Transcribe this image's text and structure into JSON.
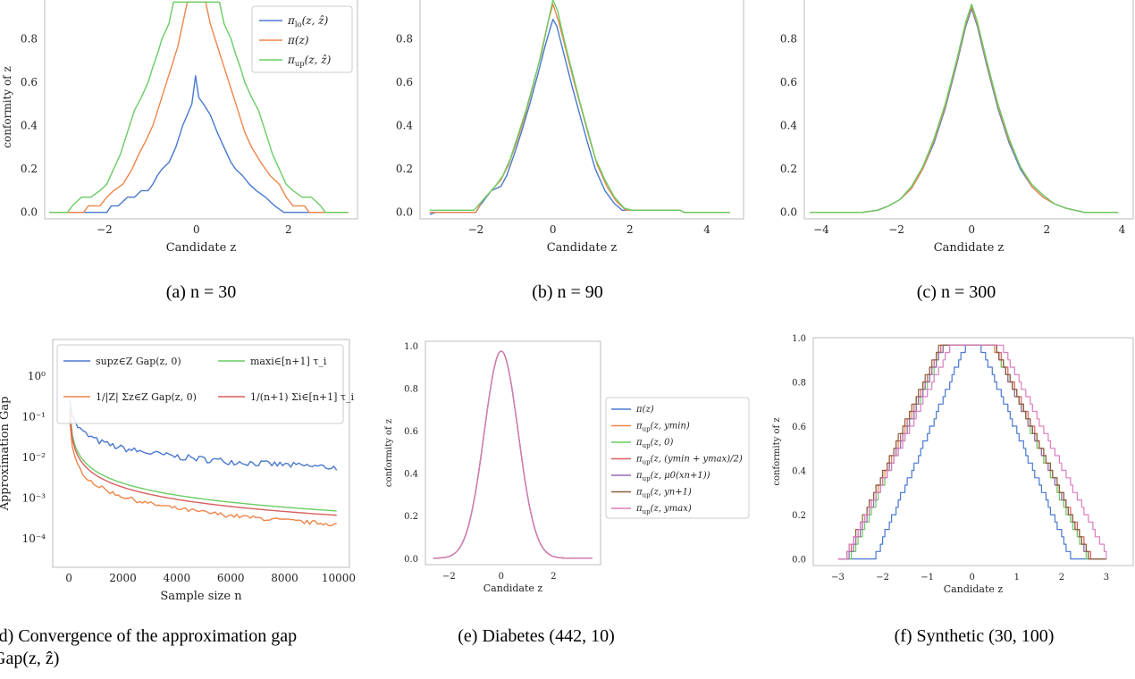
{
  "colors": {
    "blue": "#4878cf",
    "orange": "#ee854a",
    "green": "#6acc65",
    "red": "#d65f5f",
    "purple": "#956cb4",
    "brown": "#8c613c",
    "pink": "#dc7ec0"
  },
  "captions": {
    "a": "(a) n = 30",
    "b": "(b) n = 90",
    "c": "(c) n = 300",
    "d_line1": "(d) Convergence of the approximation gap",
    "d_line2": "Gap(z, ẑ)",
    "e": "(e) Diabetes (442, 10)",
    "f": "(f) Synthetic (30, 100)"
  },
  "chart_data": [
    {
      "id": "a",
      "type": "line",
      "xlabel": "Candidate z",
      "ylabel": "conformity of z",
      "xlim": [
        -3.3,
        3.5
      ],
      "ylim": [
        -0.03,
        1.0
      ],
      "xticks": [
        -2,
        0,
        2
      ],
      "yticks": [
        0.0,
        0.2,
        0.4,
        0.6,
        0.8,
        1.0
      ],
      "legend": "top-right",
      "series": [
        {
          "name": "π_lo(z, ẑ)",
          "color": "blue",
          "x": [
            -3.2,
            -1.95,
            -1.85,
            -1.7,
            -1.5,
            -1.35,
            -1.2,
            -1.05,
            -0.95,
            -0.85,
            -0.75,
            -0.6,
            -0.45,
            -0.3,
            -0.2,
            -0.1,
            -0.02,
            0.05,
            0.15,
            0.3,
            0.45,
            0.6,
            0.75,
            0.85,
            1.0,
            1.15,
            1.3,
            1.5,
            1.7,
            1.9,
            3.3
          ],
          "y": [
            0.0,
            0.0,
            0.03,
            0.03,
            0.07,
            0.07,
            0.1,
            0.1,
            0.13,
            0.17,
            0.2,
            0.23,
            0.3,
            0.4,
            0.45,
            0.5,
            0.63,
            0.53,
            0.5,
            0.45,
            0.37,
            0.3,
            0.23,
            0.2,
            0.17,
            0.13,
            0.1,
            0.07,
            0.03,
            0.0,
            0.0
          ]
        },
        {
          "name": "π(z)",
          "color": "orange",
          "x": [
            -3.2,
            -2.45,
            -2.35,
            -2.1,
            -1.95,
            -1.8,
            -1.6,
            -1.4,
            -1.25,
            -1.1,
            -0.95,
            -0.8,
            -0.65,
            -0.5,
            -0.4,
            -0.3,
            -0.2,
            -0.1,
            0.1,
            0.2,
            0.3,
            0.45,
            0.6,
            0.75,
            0.9,
            1.05,
            1.2,
            1.4,
            1.6,
            1.8,
            1.95,
            2.1,
            2.35,
            2.45,
            3.3
          ],
          "y": [
            0.0,
            0.0,
            0.03,
            0.03,
            0.07,
            0.1,
            0.13,
            0.2,
            0.27,
            0.33,
            0.4,
            0.5,
            0.6,
            0.7,
            0.77,
            0.87,
            0.97,
            0.97,
            0.97,
            0.97,
            0.87,
            0.77,
            0.67,
            0.57,
            0.47,
            0.37,
            0.3,
            0.23,
            0.17,
            0.13,
            0.07,
            0.03,
            0.03,
            0.0,
            0.0
          ]
        },
        {
          "name": "π_up(z, ẑ)",
          "color": "green",
          "x": [
            -3.2,
            -2.8,
            -2.7,
            -2.5,
            -2.3,
            -2.1,
            -1.95,
            -1.8,
            -1.65,
            -1.5,
            -1.35,
            -1.2,
            -1.05,
            -0.95,
            -0.85,
            -0.75,
            -0.6,
            -0.5,
            0.5,
            0.6,
            0.75,
            0.85,
            0.95,
            1.05,
            1.2,
            1.35,
            1.5,
            1.65,
            1.8,
            1.95,
            2.1,
            2.3,
            2.5,
            2.7,
            2.8,
            3.3
          ],
          "y": [
            0.0,
            0.0,
            0.03,
            0.07,
            0.07,
            0.1,
            0.13,
            0.2,
            0.27,
            0.37,
            0.47,
            0.53,
            0.6,
            0.67,
            0.73,
            0.8,
            0.87,
            0.97,
            0.97,
            0.87,
            0.8,
            0.73,
            0.67,
            0.6,
            0.53,
            0.47,
            0.37,
            0.27,
            0.2,
            0.13,
            0.1,
            0.07,
            0.07,
            0.03,
            0.0,
            0.0
          ]
        }
      ]
    },
    {
      "id": "b",
      "type": "line",
      "xlabel": "Candidate z",
      "ylabel": "",
      "xlim": [
        -3.45,
        4.95
      ],
      "ylim": [
        -0.03,
        1.0
      ],
      "xticks": [
        -2,
        0,
        2,
        4
      ],
      "yticks": [
        0.0,
        0.2,
        0.4,
        0.6,
        0.8,
        1.0
      ],
      "series": [
        {
          "name": "",
          "color": "blue",
          "x": [
            -3.2,
            -3.05,
            -2.0,
            -1.9,
            -1.6,
            -1.35,
            -1.2,
            -1.0,
            -0.8,
            -0.6,
            -0.4,
            -0.2,
            -0.05,
            0.0,
            0.1,
            0.3,
            0.5,
            0.7,
            0.9,
            1.1,
            1.35,
            1.6,
            1.8,
            3.3,
            3.4,
            4.6
          ],
          "y": [
            -0.01,
            0.0,
            0.0,
            0.03,
            0.1,
            0.12,
            0.17,
            0.27,
            0.38,
            0.5,
            0.63,
            0.77,
            0.86,
            0.89,
            0.86,
            0.72,
            0.58,
            0.45,
            0.32,
            0.2,
            0.1,
            0.04,
            0.01,
            0.01,
            0.0,
            0.0
          ]
        },
        {
          "name": "",
          "color": "orange",
          "x": [
            -3.2,
            -2.0,
            -1.85,
            -1.6,
            -1.35,
            -1.15,
            -0.95,
            -0.75,
            -0.55,
            -0.35,
            -0.15,
            0.0,
            0.15,
            0.35,
            0.55,
            0.75,
            0.95,
            1.15,
            1.4,
            1.65,
            1.9,
            3.3,
            3.4,
            4.6
          ],
          "y": [
            0.0,
            0.0,
            0.05,
            0.1,
            0.15,
            0.22,
            0.32,
            0.43,
            0.56,
            0.7,
            0.86,
            0.96,
            0.88,
            0.74,
            0.6,
            0.47,
            0.34,
            0.22,
            0.12,
            0.05,
            0.01,
            0.01,
            0.0,
            0.0
          ]
        },
        {
          "name": "",
          "color": "green",
          "x": [
            -3.2,
            -2.05,
            -1.8,
            -1.5,
            -1.3,
            -1.1,
            -0.9,
            -0.7,
            -0.5,
            -0.3,
            -0.1,
            0.0,
            0.12,
            0.3,
            0.5,
            0.7,
            0.9,
            1.1,
            1.35,
            1.6,
            1.85,
            2.05,
            3.3,
            3.4,
            4.6
          ],
          "y": [
            0.01,
            0.01,
            0.06,
            0.12,
            0.17,
            0.25,
            0.36,
            0.47,
            0.6,
            0.73,
            0.9,
            0.98,
            0.93,
            0.79,
            0.65,
            0.51,
            0.38,
            0.25,
            0.15,
            0.07,
            0.02,
            0.01,
            0.01,
            0.0,
            0.0
          ]
        }
      ]
    },
    {
      "id": "c",
      "type": "line",
      "xlabel": "Candidate z",
      "ylabel": "",
      "xlim": [
        -4.45,
        4.3
      ],
      "ylim": [
        -0.03,
        1.0
      ],
      "xticks": [
        -4,
        -2,
        0,
        2,
        4
      ],
      "yticks": [
        0.0,
        0.2,
        0.4,
        0.6,
        0.8,
        1.0
      ],
      "series": [
        {
          "name": "",
          "color": "blue",
          "x": [
            -4.3,
            -2.9,
            -2.5,
            -2.2,
            -1.9,
            -1.6,
            -1.3,
            -1.0,
            -0.7,
            -0.4,
            -0.15,
            0.0,
            0.15,
            0.4,
            0.7,
            1.0,
            1.3,
            1.6,
            1.9,
            2.2,
            2.5,
            3.0,
            3.9
          ],
          "y": [
            0.0,
            0.0,
            0.01,
            0.03,
            0.06,
            0.11,
            0.2,
            0.32,
            0.48,
            0.68,
            0.86,
            0.94,
            0.86,
            0.68,
            0.48,
            0.32,
            0.2,
            0.12,
            0.07,
            0.04,
            0.02,
            0.0,
            0.0
          ]
        },
        {
          "name": "",
          "color": "orange",
          "x": [
            -4.3,
            -2.9,
            -2.5,
            -2.2,
            -1.9,
            -1.6,
            -1.3,
            -1.0,
            -0.7,
            -0.4,
            -0.15,
            0.0,
            0.15,
            0.4,
            0.7,
            1.0,
            1.3,
            1.6,
            1.9,
            2.2,
            2.5,
            3.0,
            3.9
          ],
          "y": [
            0.0,
            0.0,
            0.01,
            0.03,
            0.06,
            0.11,
            0.2,
            0.33,
            0.49,
            0.69,
            0.87,
            0.95,
            0.87,
            0.69,
            0.49,
            0.33,
            0.21,
            0.12,
            0.07,
            0.04,
            0.02,
            0.0,
            0.0
          ]
        },
        {
          "name": "",
          "color": "green",
          "x": [
            -4.3,
            -2.9,
            -2.5,
            -2.2,
            -1.9,
            -1.6,
            -1.3,
            -1.0,
            -0.7,
            -0.4,
            -0.15,
            0.0,
            0.15,
            0.4,
            0.7,
            1.0,
            1.3,
            1.6,
            1.9,
            2.2,
            2.5,
            3.0,
            3.9
          ],
          "y": [
            0.0,
            0.0,
            0.01,
            0.03,
            0.06,
            0.12,
            0.21,
            0.34,
            0.5,
            0.7,
            0.88,
            0.96,
            0.88,
            0.7,
            0.5,
            0.34,
            0.21,
            0.13,
            0.08,
            0.04,
            0.02,
            0.0,
            0.0
          ]
        }
      ]
    },
    {
      "id": "d",
      "type": "line",
      "yscale": "log",
      "xlabel": "Sample size n",
      "ylabel": "Approximation Gap",
      "xlim": [
        -600,
        10400
      ],
      "ylim": [
        2e-05,
        8
      ],
      "xticks": [
        0,
        2000,
        4000,
        6000,
        8000,
        10000
      ],
      "yticks": [
        0.0001,
        0.001,
        0.01,
        0.1,
        1
      ],
      "ytick_labels": [
        "10⁻⁴",
        "10⁻³",
        "10⁻²",
        "10⁻¹",
        "10⁰"
      ],
      "legend": "top",
      "legend_entries": [
        {
          "label": "sup_{z∈Z} Gap(z, 0)",
          "color": "blue"
        },
        {
          "label": "1/|Z| Σ_{z∈Z} Gap(z, 0)",
          "color": "orange"
        },
        {
          "label": "max_{i∈[n+1]} τ_i",
          "color": "green"
        },
        {
          "label": "1/(n+1) Σ_{i∈[n+1]} τ_i",
          "color": "red"
        }
      ],
      "series": [
        {
          "name": "sup_{z∈Z} Gap(z, 0)",
          "color": "blue",
          "kind": "noisy",
          "amp": 3.0,
          "exp": 0.68,
          "noise": 0.18,
          "floor": 0.0003
        },
        {
          "name": "1/|Z| Σ_{z∈Z} Gap(z, 0)",
          "color": "orange",
          "kind": "noisy",
          "amp": 1.9,
          "exp": 0.98,
          "noise": 0.12,
          "floor": 0.0
        },
        {
          "name": "max_{i∈[n+1]} τ_i",
          "color": "green",
          "kind": "smooth",
          "amp": 3.5,
          "exp": 0.98
        },
        {
          "name": "1/(n+1) Σ_{i∈[n+1]} τ_i",
          "color": "red",
          "kind": "smooth",
          "amp": 3.0,
          "exp": 0.99
        }
      ]
    },
    {
      "id": "e",
      "type": "line",
      "xlabel": "Candidate z",
      "ylabel": "conformity of z",
      "xlim": [
        -2.9,
        3.8
      ],
      "ylim": [
        -0.03,
        1.02
      ],
      "xticks": [
        -2,
        0,
        2
      ],
      "yticks": [
        0.0,
        0.2,
        0.4,
        0.6,
        0.8,
        1.0
      ],
      "legend": "right-outside",
      "curve": {
        "center": 0.0,
        "width": 0.65,
        "lo": -2.6,
        "hi": 3.55
      },
      "series": [
        {
          "name": "π(z)",
          "color": "blue"
        },
        {
          "name": "π_up(z, y_min)",
          "color": "orange"
        },
        {
          "name": "π_up(z, 0)",
          "color": "green"
        },
        {
          "name": "π_up(z, (y_min + y_max)/2)",
          "color": "red"
        },
        {
          "name": "π_up(z, μ_0(x_{n+1}))",
          "color": "purple"
        },
        {
          "name": "π_up(z, y_{n+1})",
          "color": "brown"
        },
        {
          "name": "π_up(z, y_max)",
          "color": "pink"
        }
      ]
    },
    {
      "id": "f",
      "type": "line",
      "xlabel": "Candidate z",
      "ylabel": "conformity of z",
      "xlim": [
        -3.55,
        3.6
      ],
      "ylim": [
        -0.03,
        1.0
      ],
      "xticks": [
        -3,
        -2,
        -1,
        0,
        1,
        2,
        3
      ],
      "yticks": [
        0.0,
        0.2,
        0.4,
        0.6,
        0.8,
        1.0
      ],
      "series": [
        {
          "name": "",
          "color": "blue",
          "shift": 0.0,
          "halfwidth": 2.2,
          "plateau": 0.15
        },
        {
          "name": "",
          "color": "orange",
          "shift": -0.35,
          "halfwidth": 2.7,
          "plateau": 0.55
        },
        {
          "name": "",
          "color": "green",
          "shift": -0.3,
          "halfwidth": 2.65,
          "plateau": 0.55
        },
        {
          "name": "",
          "color": "red",
          "shift": -0.35,
          "halfwidth": 2.75,
          "plateau": 0.6
        },
        {
          "name": "",
          "color": "purple",
          "shift": -0.3,
          "halfwidth": 2.7,
          "plateau": 0.55
        },
        {
          "name": "",
          "color": "brown",
          "shift": -0.4,
          "halfwidth": 2.75,
          "plateau": 0.6
        },
        {
          "name": "",
          "color": "pink",
          "shift": 0.25,
          "halfwidth": 2.95,
          "plateau": 0.55
        }
      ]
    }
  ]
}
